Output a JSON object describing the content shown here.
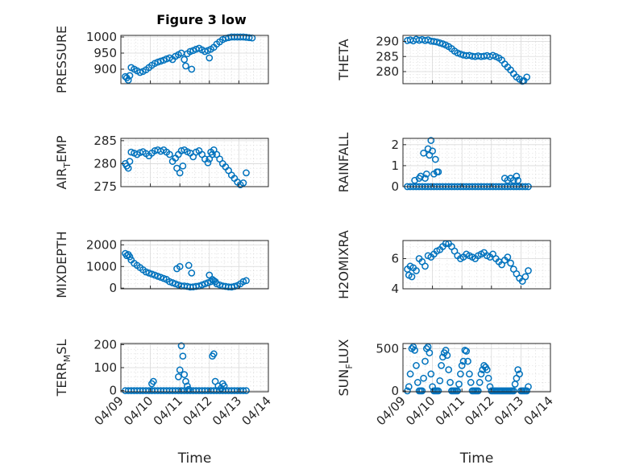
{
  "figure_title": "Figure 3 low",
  "chart_data": [
    {
      "id": "pressure",
      "type": "scatter",
      "ylabel": "PRESSURE",
      "ylim": [
        855,
        1005
      ],
      "yticks": [
        900,
        950,
        1000
      ],
      "xlim": [
        "04/09",
        "04/14"
      ],
      "show_xticks": false,
      "x": [
        0.15,
        0.2,
        0.25,
        0.3,
        0.35,
        0.45,
        0.55,
        0.65,
        0.75,
        0.85,
        0.95,
        1.05,
        1.15,
        1.25,
        1.35,
        1.45,
        1.55,
        1.65,
        1.75,
        1.85,
        1.95,
        2.05,
        2.15,
        2.25,
        2.35,
        2.45,
        2.55,
        2.65,
        2.75,
        2.85,
        2.95,
        3.05,
        3.15,
        3.25,
        3.35,
        3.45,
        3.55,
        3.65,
        3.75,
        3.85,
        3.95,
        4.05,
        4.15,
        4.25,
        4.35,
        4.45,
        2.2,
        2.4,
        3.0
      ],
      "y": [
        877,
        873,
        866,
        880,
        905,
        900,
        895,
        890,
        893,
        898,
        905,
        912,
        918,
        922,
        925,
        928,
        932,
        935,
        930,
        940,
        945,
        950,
        930,
        948,
        955,
        958,
        962,
        965,
        960,
        955,
        958,
        962,
        968,
        978,
        985,
        992,
        996,
        998,
        1000,
        1000,
        1000,
        1000,
        1000,
        999,
        998,
        997,
        910,
        900,
        935
      ]
    },
    {
      "id": "theta",
      "type": "scatter",
      "ylabel": "THETA",
      "ylim": [
        276,
        292
      ],
      "yticks": [
        280,
        285,
        290
      ],
      "xlim": [
        "04/09",
        "04/14"
      ],
      "show_xticks": false,
      "x": [
        0.15,
        0.25,
        0.35,
        0.45,
        0.55,
        0.65,
        0.75,
        0.85,
        0.95,
        1.05,
        1.15,
        1.25,
        1.35,
        1.45,
        1.55,
        1.65,
        1.75,
        1.85,
        1.95,
        2.05,
        2.15,
        2.25,
        2.35,
        2.45,
        2.55,
        2.65,
        2.75,
        2.85,
        2.95,
        3.05,
        3.15,
        3.25,
        3.35,
        3.45,
        3.55,
        3.65,
        3.75,
        3.85,
        3.95,
        4.05,
        4.1,
        4.2
      ],
      "y": [
        290.3,
        290.5,
        290.2,
        290.7,
        290.4,
        290.6,
        290.3,
        290.5,
        290.1,
        290.0,
        289.8,
        289.5,
        289.2,
        288.8,
        288.3,
        287.6,
        286.8,
        286.2,
        285.8,
        285.5,
        285.3,
        285.4,
        285.1,
        285.0,
        285.2,
        285.0,
        285.1,
        285.3,
        285.0,
        285.4,
        285.0,
        284.5,
        283.8,
        282.5,
        281.5,
        280.5,
        279.3,
        278.2,
        277.5,
        276.8,
        277.0,
        278.2
      ]
    },
    {
      "id": "air_temp",
      "type": "scatter",
      "ylabel": "AIR",
      "ylabel_sub": "T",
      "ylabel_after": "EMP",
      "ylim": [
        275,
        285.5
      ],
      "yticks": [
        275,
        280,
        285
      ],
      "xlim": [
        "04/09",
        "04/14"
      ],
      "show_xticks": false,
      "x": [
        0.15,
        0.2,
        0.25,
        0.3,
        0.35,
        0.45,
        0.55,
        0.65,
        0.75,
        0.85,
        0.95,
        1.05,
        1.15,
        1.25,
        1.35,
        1.45,
        1.55,
        1.65,
        1.75,
        1.85,
        1.95,
        2.05,
        2.15,
        2.25,
        2.35,
        2.45,
        2.55,
        2.65,
        2.75,
        2.85,
        2.95,
        3.05,
        3.15,
        3.25,
        3.35,
        3.45,
        3.55,
        3.65,
        3.75,
        3.85,
        3.95,
        4.05,
        4.15,
        4.25,
        1.9,
        2.0,
        2.1,
        3.0,
        3.1
      ],
      "y": [
        280,
        279.5,
        279,
        280.5,
        282.5,
        282.3,
        282,
        282.4,
        282.6,
        282.2,
        281.7,
        282.3,
        282.8,
        283,
        282.7,
        283,
        282.5,
        282,
        280.5,
        281.2,
        282,
        282.8,
        283,
        282.6,
        282.3,
        281.5,
        282.5,
        282.8,
        282,
        281,
        280.2,
        282.5,
        283,
        282,
        281,
        280,
        279.3,
        278.5,
        277.5,
        276.8,
        276,
        275.4,
        275.8,
        278,
        279,
        278,
        279.5,
        281,
        282
      ]
    },
    {
      "id": "rainfall",
      "type": "scatter",
      "ylabel": "RAINFALL",
      "ylim": [
        0,
        2.3
      ],
      "yticks": [
        0,
        1,
        2
      ],
      "xlim": [
        "04/09",
        "04/14"
      ],
      "show_xticks": false,
      "x": [
        0.15,
        0.25,
        0.35,
        0.45,
        0.55,
        0.65,
        0.75,
        0.85,
        0.95,
        1.05,
        1.15,
        1.25,
        1.35,
        1.45,
        1.55,
        1.65,
        1.75,
        1.85,
        1.95,
        2.05,
        2.15,
        2.25,
        2.35,
        2.45,
        2.55,
        2.65,
        2.75,
        2.85,
        2.95,
        3.05,
        3.15,
        3.25,
        3.35,
        3.45,
        3.55,
        3.65,
        3.75,
        3.85,
        3.95,
        4.05,
        4.15,
        4.25,
        0.4,
        0.55,
        0.6,
        0.7,
        0.75,
        0.8,
        0.85,
        0.9,
        0.95,
        1.0,
        1.05,
        1.1,
        1.15,
        1.2,
        3.45,
        3.55,
        3.65,
        3.75,
        3.85,
        3.9
      ],
      "y": [
        0,
        0,
        0,
        0,
        0,
        0,
        0,
        0,
        0,
        0,
        0,
        0,
        0,
        0,
        0,
        0,
        0,
        0,
        0,
        0,
        0,
        0,
        0,
        0,
        0,
        0,
        0,
        0,
        0,
        0,
        0,
        0,
        0,
        0,
        0,
        0,
        0,
        0,
        0,
        0,
        0,
        0,
        0.3,
        0.4,
        0.5,
        1.6,
        0.4,
        0.6,
        1.8,
        1.5,
        2.2,
        1.7,
        0.6,
        1.3,
        0.7,
        0.7,
        0.4,
        0.3,
        0.4,
        0.3,
        0.5,
        0.3
      ]
    },
    {
      "id": "mixdepth",
      "type": "scatter",
      "ylabel": "MIXDEPTH",
      "ylim": [
        -30,
        2200
      ],
      "yticks": [
        0,
        1000,
        2000
      ],
      "xlim": [
        "04/09",
        "04/14"
      ],
      "show_xticks": false,
      "x": [
        0.15,
        0.2,
        0.25,
        0.3,
        0.35,
        0.45,
        0.55,
        0.65,
        0.75,
        0.85,
        0.95,
        1.05,
        1.15,
        1.25,
        1.35,
        1.45,
        1.55,
        1.65,
        1.75,
        1.85,
        1.95,
        2.05,
        2.15,
        2.25,
        2.35,
        2.45,
        2.55,
        2.65,
        2.75,
        2.85,
        2.95,
        3.05,
        3.15,
        3.25,
        3.35,
        3.45,
        3.55,
        3.65,
        3.75,
        3.85,
        3.95,
        4.05,
        4.15,
        4.25,
        1.9,
        2.0,
        2.3,
        2.4,
        3.0,
        3.1,
        3.2
      ],
      "y": [
        1600,
        1500,
        1550,
        1450,
        1300,
        1150,
        1050,
        950,
        850,
        750,
        700,
        650,
        600,
        550,
        500,
        450,
        400,
        300,
        250,
        200,
        150,
        100,
        100,
        80,
        50,
        60,
        80,
        100,
        150,
        200,
        250,
        300,
        350,
        200,
        150,
        100,
        80,
        60,
        50,
        80,
        120,
        200,
        300,
        350,
        900,
        1000,
        1050,
        700,
        600,
        400,
        300
      ]
    },
    {
      "id": "h2omixra",
      "type": "scatter",
      "ylabel": "H2OMIXRA",
      "ylim": [
        4,
        7.2
      ],
      "yticks": [
        4,
        6
      ],
      "xlim": [
        "04/09",
        "04/14"
      ],
      "show_xticks": false,
      "x": [
        0.15,
        0.2,
        0.25,
        0.3,
        0.35,
        0.45,
        0.55,
        0.65,
        0.75,
        0.85,
        0.95,
        1.05,
        1.15,
        1.25,
        1.35,
        1.45,
        1.55,
        1.65,
        1.75,
        1.85,
        1.95,
        2.05,
        2.15,
        2.25,
        2.35,
        2.45,
        2.55,
        2.65,
        2.75,
        2.85,
        2.95,
        3.05,
        3.15,
        3.25,
        3.35,
        3.45,
        3.55,
        3.65,
        3.75,
        3.85,
        3.95,
        4.05,
        4.15,
        4.25
      ],
      "y": [
        5.3,
        4.9,
        5.5,
        4.8,
        5.4,
        5.2,
        6.0,
        5.8,
        5.5,
        6.2,
        6.1,
        6.3,
        6.5,
        6.6,
        6.8,
        7.0,
        7.0,
        6.8,
        6.5,
        6.2,
        6.0,
        6.1,
        6.3,
        6.2,
        6.1,
        6.0,
        6.2,
        6.3,
        6.4,
        6.2,
        6.1,
        6.3,
        6.0,
        5.8,
        5.6,
        5.9,
        6.1,
        5.7,
        5.3,
        5.0,
        4.7,
        4.5,
        4.8,
        5.2
      ]
    },
    {
      "id": "terr_msl",
      "type": "scatter",
      "ylabel": "TERR",
      "ylabel_sub": "M",
      "ylabel_after": "SL",
      "ylim": [
        -5,
        205
      ],
      "yticks": [
        0,
        100,
        200
      ],
      "xlim": [
        "04/09",
        "04/14"
      ],
      "xticks": [
        "04/09",
        "04/10",
        "04/11",
        "04/12",
        "04/13",
        "04/14"
      ],
      "show_xticks": true,
      "xlabel": "Time",
      "x": [
        0.15,
        0.25,
        0.35,
        0.45,
        0.55,
        0.65,
        0.75,
        0.85,
        0.95,
        1.05,
        1.15,
        1.25,
        1.35,
        1.45,
        1.55,
        1.65,
        1.75,
        1.85,
        1.95,
        2.05,
        2.15,
        2.25,
        2.35,
        2.45,
        2.55,
        2.65,
        2.75,
        2.85,
        2.95,
        3.05,
        3.15,
        3.25,
        3.35,
        3.45,
        3.55,
        3.65,
        3.75,
        3.85,
        3.95,
        4.05,
        4.15,
        4.25,
        1.95,
        2.0,
        2.05,
        2.1,
        2.15,
        2.2,
        2.25,
        2.3,
        1.05,
        1.1,
        3.1,
        3.15,
        3.2,
        3.3,
        3.4,
        3.45,
        3.5
      ],
      "y": [
        0,
        0,
        0,
        0,
        0,
        0,
        0,
        0,
        0,
        0,
        0,
        0,
        0,
        0,
        0,
        0,
        0,
        0,
        0,
        0,
        0,
        0,
        0,
        0,
        0,
        0,
        0,
        0,
        0,
        0,
        0,
        0,
        0,
        0,
        0,
        0,
        0,
        0,
        0,
        0,
        0,
        0,
        60,
        90,
        195,
        150,
        70,
        40,
        20,
        5,
        30,
        40,
        150,
        160,
        40,
        20,
        10,
        30,
        20
      ]
    },
    {
      "id": "sun_flux",
      "type": "scatter",
      "ylabel": "SUN",
      "ylabel_sub": "F",
      "ylabel_after": "LUX",
      "ylim": [
        -10,
        560
      ],
      "yticks": [
        0,
        500
      ],
      "xlim": [
        "04/09",
        "04/14"
      ],
      "xticks": [
        "04/09",
        "04/10",
        "04/11",
        "04/12",
        "04/13",
        "04/14"
      ],
      "show_xticks": true,
      "xlabel": "Time",
      "x": [
        0.15,
        0.2,
        0.25,
        0.3,
        0.35,
        0.4,
        0.45,
        0.5,
        0.55,
        0.6,
        0.65,
        0.7,
        0.75,
        0.8,
        0.85,
        0.9,
        0.95,
        1.0,
        1.05,
        1.1,
        1.15,
        1.2,
        1.25,
        1.3,
        1.35,
        1.4,
        1.45,
        1.5,
        1.55,
        1.6,
        1.65,
        1.7,
        1.75,
        1.8,
        1.85,
        1.9,
        1.95,
        2.0,
        2.05,
        2.1,
        2.15,
        2.2,
        2.25,
        2.3,
        2.35,
        2.4,
        2.45,
        2.5,
        2.55,
        2.6,
        2.65,
        2.7,
        2.75,
        2.8,
        2.85,
        2.9,
        2.95,
        3.0,
        3.05,
        3.1,
        3.15,
        3.2,
        3.25,
        3.3,
        3.35,
        3.4,
        3.45,
        3.5,
        3.55,
        3.6,
        3.65,
        3.7,
        3.75,
        3.8,
        3.85,
        3.9,
        3.95,
        4.0,
        4.05,
        4.1,
        4.15,
        4.2,
        4.25
      ],
      "y": [
        0,
        50,
        200,
        500,
        520,
        480,
        300,
        100,
        0,
        0,
        0,
        150,
        350,
        500,
        520,
        450,
        200,
        50,
        0,
        0,
        0,
        0,
        120,
        300,
        400,
        450,
        480,
        420,
        250,
        100,
        0,
        0,
        0,
        0,
        0,
        80,
        200,
        300,
        350,
        480,
        470,
        350,
        200,
        100,
        0,
        0,
        0,
        0,
        0,
        100,
        200,
        250,
        300,
        280,
        250,
        150,
        50,
        0,
        0,
        0,
        0,
        0,
        0,
        0,
        0,
        0,
        0,
        0,
        0,
        0,
        0,
        0,
        0,
        80,
        150,
        250,
        200,
        0,
        0,
        0,
        0,
        0,
        50
      ]
    }
  ]
}
